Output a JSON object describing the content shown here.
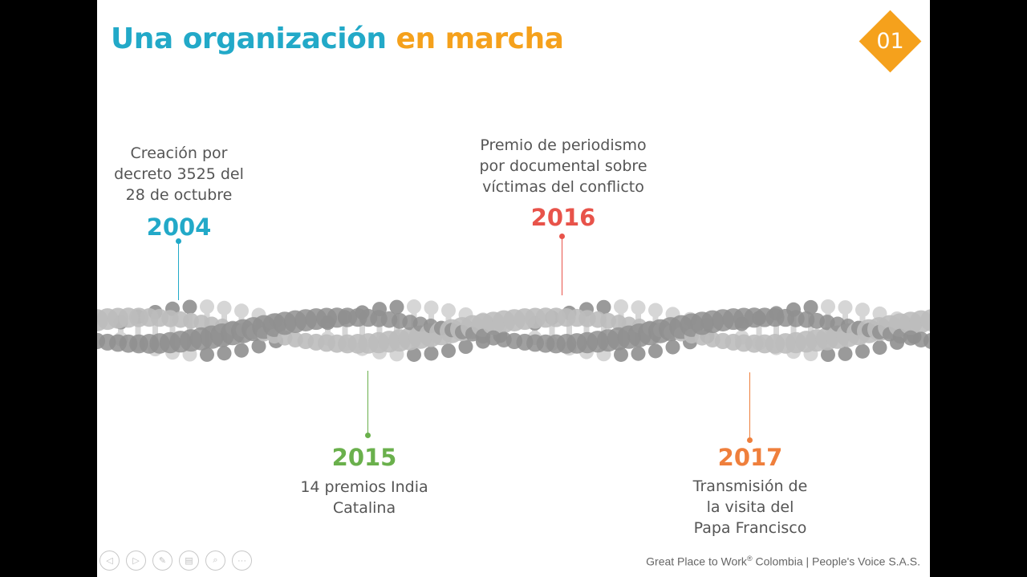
{
  "title": {
    "part1": "Una organización",
    "part2": "en marcha"
  },
  "slide_number": "01",
  "colors": {
    "title_blue": "#22a9c8",
    "title_orange": "#f5a11c",
    "blue": "#22a9c8",
    "green": "#6ab04c",
    "red": "#e8534a",
    "orange": "#ef7f3c",
    "helix_light": "#d6d6d6",
    "helix_dark": "#9a9a9a"
  },
  "timeline": [
    {
      "year": "2004",
      "lines": [
        "Creación por",
        "decreto 3525 del",
        "28 de octubre"
      ]
    },
    {
      "year": "2015",
      "lines": [
        "14 premios India",
        "Catalina"
      ]
    },
    {
      "year": "2016",
      "lines": [
        "Premio de periodismo",
        "por documental sobre",
        "víctimas del conflicto"
      ]
    },
    {
      "year": "2017",
      "lines": [
        "Transmisión de",
        "la visita del",
        "Papa Francisco"
      ]
    }
  ],
  "footer": {
    "brand": "Great Place to Work",
    "reg": "®",
    "rest": " Colombia | People's Voice S.A.S."
  },
  "controls": [
    {
      "icon": "previous-icon",
      "glyph": "◁"
    },
    {
      "icon": "next-icon",
      "glyph": "▷"
    },
    {
      "icon": "pen-icon",
      "glyph": "✎"
    },
    {
      "icon": "slides-icon",
      "glyph": "▤"
    },
    {
      "icon": "zoom-icon",
      "glyph": "⌕"
    },
    {
      "icon": "more-icon",
      "glyph": "···"
    }
  ]
}
